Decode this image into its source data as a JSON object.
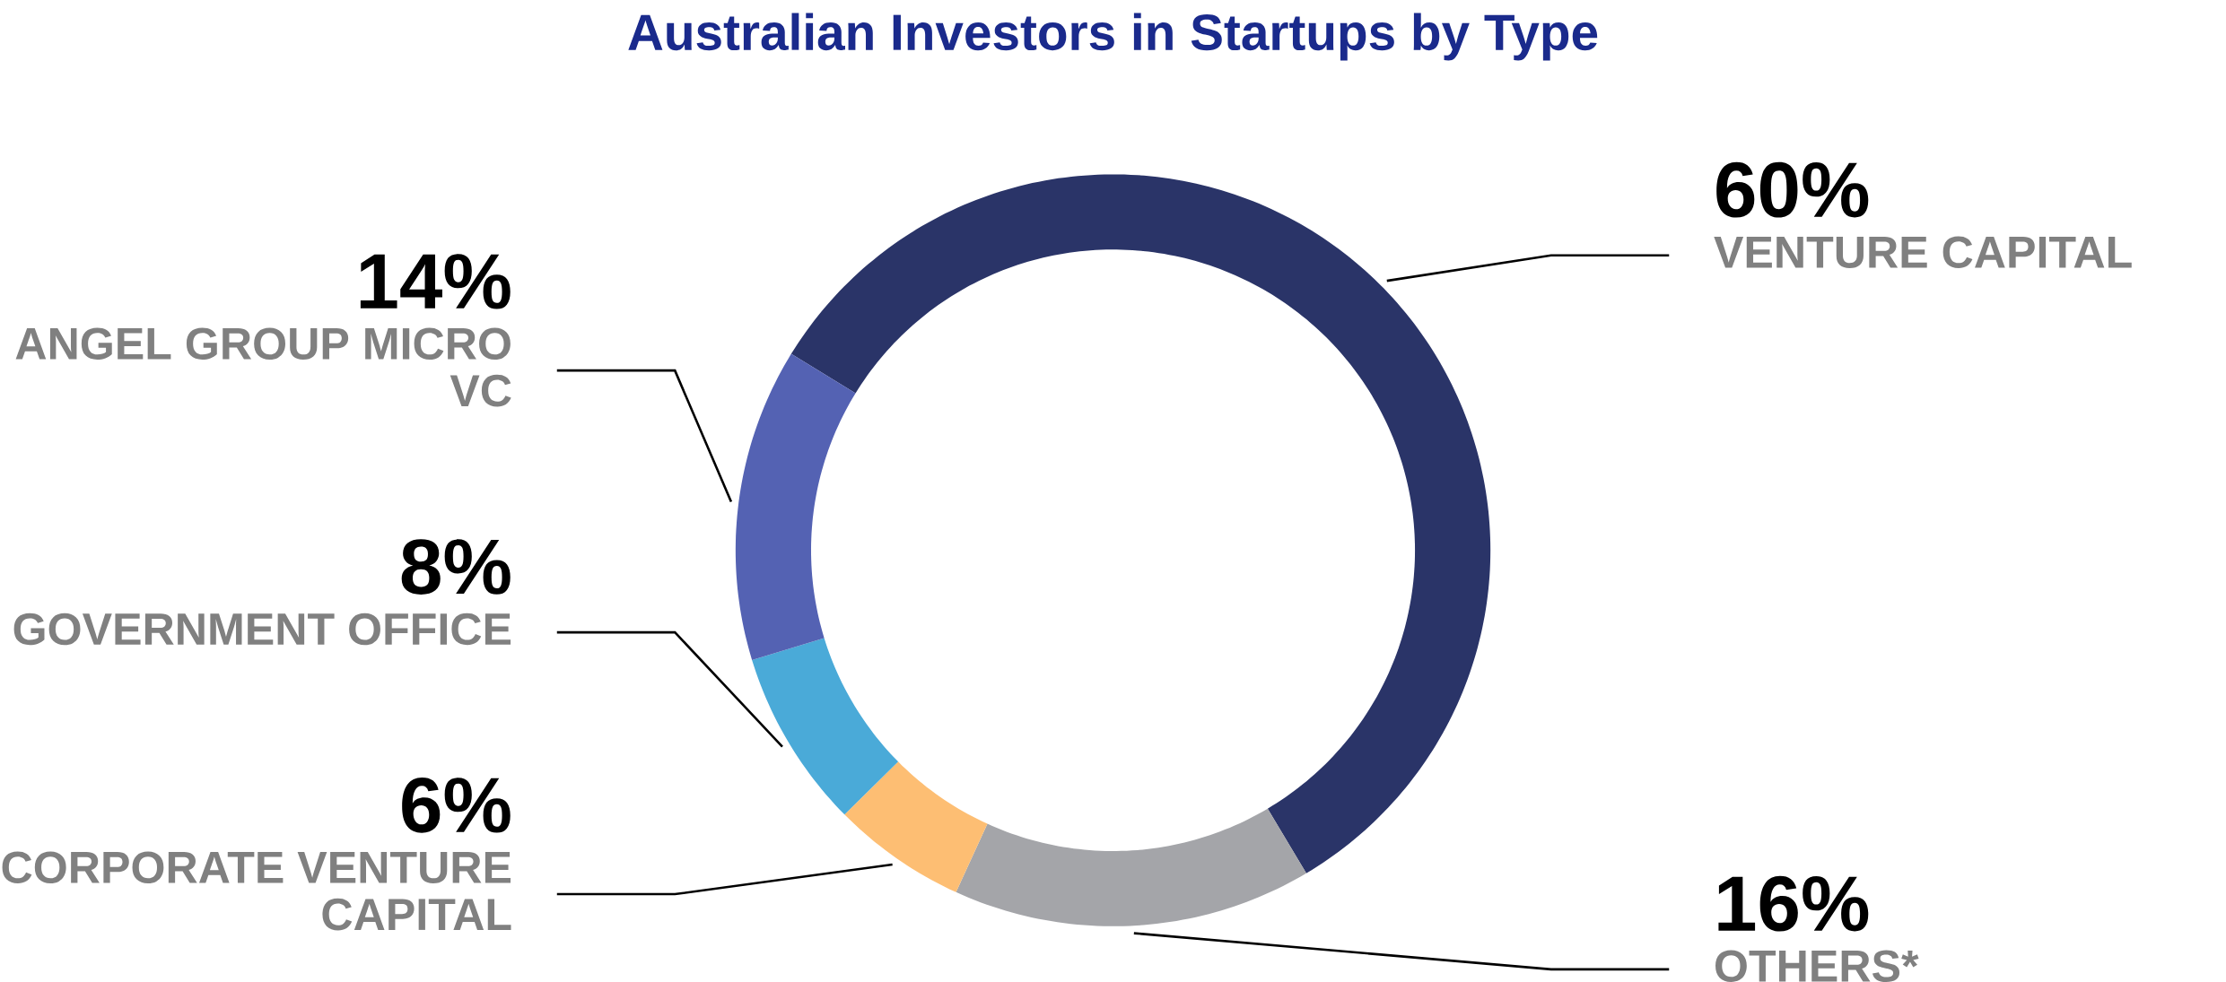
{
  "chart_data": {
    "type": "donut",
    "title": "Australian Investors in Startups by Type",
    "categories": [
      "VENTURE CAPITAL",
      "OTHERS*",
      "CORPORATE VENTURE CAPITAL",
      "GOVERNMENT OFFICE",
      "ANGEL GROUP MICRO VC"
    ],
    "values": [
      60,
      16,
      6,
      8,
      14
    ],
    "colors": [
      "#2a3468",
      "#a4a5a9",
      "#fdbe73",
      "#4aaad8",
      "#5462b3"
    ],
    "value_labels": [
      "60%",
      "16%",
      "6%",
      "8%",
      "14%"
    ]
  }
}
